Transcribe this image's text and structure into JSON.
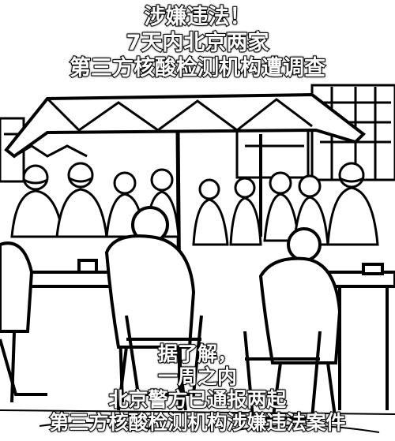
{
  "headline": {
    "line1": "涉嫌违法！",
    "line2": "7天内北京两家",
    "line3": "第三方核酸检测机构遭调查"
  },
  "subtitle": {
    "line1": "据了解，",
    "line2": "一周之内",
    "line3": "北京警方已通报两起",
    "line4": "第三方核酸检测机构涉嫌违法案件"
  }
}
